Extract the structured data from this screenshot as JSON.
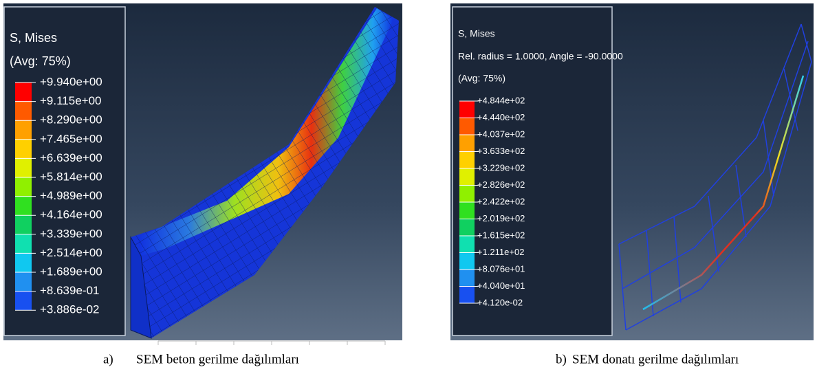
{
  "panels": [
    {
      "legend": {
        "title": "S, Mises",
        "lines": [
          "(Avg: 75%)"
        ],
        "levels": [
          "+9.940e+00",
          "+9.115e+00",
          "+8.290e+00",
          "+7.465e+00",
          "+6.639e+00",
          "+5.814e+00",
          "+4.989e+00",
          "+4.164e+00",
          "+3.339e+00",
          "+2.514e+00",
          "+1.689e+00",
          "+8.639e-01",
          "+3.886e-02"
        ]
      },
      "caption": {
        "label": "a)",
        "text": "SEM beton gerilme dağılımları"
      }
    },
    {
      "legend": {
        "title": "S, Mises",
        "lines": [
          "Rel. radius = 1.0000, Angle = -90.0000",
          "(Avg: 75%)"
        ],
        "levels": [
          "+4.844e+02",
          "+4.440e+02",
          "+4.037e+02",
          "+3.633e+02",
          "+3.229e+02",
          "+2.826e+02",
          "+2.422e+02",
          "+2.019e+02",
          "+1.615e+02",
          "+1.211e+02",
          "+8.076e+01",
          "+4.040e+01",
          "+4.120e-02"
        ]
      },
      "caption": {
        "label": "b)",
        "text": "SEM donatı gerilme dağılımları"
      }
    }
  ]
}
